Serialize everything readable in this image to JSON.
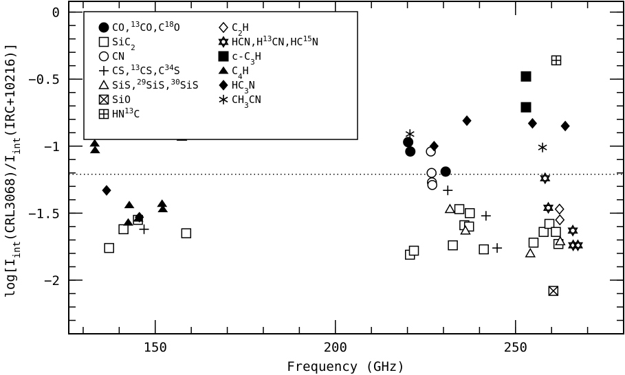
{
  "chart_data": {
    "type": "scatter",
    "xlabel": "Frequency (GHz)",
    "ylabel": "log[I_int(CRL3068)/I_int(IRC+10216)]",
    "xlim": [
      126,
      280
    ],
    "ylim": [
      -2.4,
      0.08
    ],
    "x_ticks": [
      150,
      200,
      250
    ],
    "y_ticks": [
      0,
      -0.5,
      -1,
      -1.5,
      -2
    ],
    "x_tick_labels": [
      "150",
      "200",
      "250"
    ],
    "y_tick_labels": [
      "0",
      "−0.5",
      "−1",
      "−1.5",
      "−2"
    ],
    "reference_line": {
      "y": -1.21,
      "style": "dotted"
    },
    "series": [
      {
        "name": "CO,13CO,C18O",
        "marker": "filled-circle",
        "points": [
          [
            220.2,
            -0.97
          ],
          [
            220.8,
            -1.04
          ],
          [
            230.6,
            -1.19
          ]
        ]
      },
      {
        "name": "SiC2",
        "marker": "open-square",
        "points": [
          [
            137.2,
            -1.76
          ],
          [
            141.2,
            -1.62
          ],
          [
            145.2,
            -1.55
          ],
          [
            158.6,
            -1.65
          ],
          [
            220.7,
            -1.81
          ],
          [
            221.8,
            -1.78
          ],
          [
            232.6,
            -1.74
          ],
          [
            234.4,
            -1.47
          ],
          [
            235.8,
            -1.59
          ],
          [
            237.1,
            -1.6
          ],
          [
            237.3,
            -1.5
          ],
          [
            241.2,
            -1.77
          ],
          [
            255.0,
            -1.72
          ],
          [
            257.8,
            -1.64
          ],
          [
            259.4,
            -1.58
          ],
          [
            261.2,
            -1.64
          ],
          [
            261.9,
            -1.73
          ]
        ]
      },
      {
        "name": "CN",
        "marker": "open-circle",
        "points": [
          [
            226.5,
            -1.04
          ],
          [
            226.7,
            -1.2
          ],
          [
            226.8,
            -1.27
          ],
          [
            226.9,
            -1.29
          ]
        ]
      },
      {
        "name": "CS,13CS,C34S",
        "marker": "plus",
        "points": [
          [
            146.9,
            -1.62
          ],
          [
            231.2,
            -1.33
          ],
          [
            241.8,
            -1.52
          ],
          [
            244.9,
            -1.76
          ]
        ]
      },
      {
        "name": "SiS,29SiS,30SiS",
        "marker": "open-triangle",
        "points": [
          [
            157.4,
            -0.93
          ],
          [
            231.8,
            -1.47
          ],
          [
            236.1,
            -1.63
          ],
          [
            254.1,
            -1.8
          ],
          [
            262.4,
            -1.71
          ]
        ]
      },
      {
        "name": "SiO",
        "marker": "crossed-square",
        "points": [
          [
            260.5,
            -2.08
          ]
        ]
      },
      {
        "name": "HN13C",
        "marker": "plussed-square",
        "points": [
          [
            261.3,
            -0.36
          ]
        ]
      },
      {
        "name": "C2H",
        "marker": "open-diamond",
        "points": [
          [
            262.2,
            -1.47
          ],
          [
            262.3,
            -1.55
          ]
        ]
      },
      {
        "name": "HCN,H13CN,HC15N",
        "marker": "star-of-david",
        "points": [
          [
            258.2,
            -1.24
          ],
          [
            259.1,
            -1.46
          ],
          [
            265.9,
            -1.63
          ],
          [
            266.0,
            -1.74
          ],
          [
            267.3,
            -1.74
          ]
        ]
      },
      {
        "name": "c-C3H",
        "marker": "filled-square",
        "points": [
          [
            252.9,
            -0.48
          ],
          [
            252.9,
            -0.71
          ]
        ]
      },
      {
        "name": "C4H",
        "marker": "filled-triangle",
        "points": [
          [
            133.2,
            -0.98
          ],
          [
            133.3,
            -1.03
          ],
          [
            142.5,
            -1.57
          ],
          [
            142.8,
            -1.44
          ],
          [
            145.3,
            -1.54
          ],
          [
            151.9,
            -1.43
          ],
          [
            152.1,
            -1.47
          ]
        ]
      },
      {
        "name": "HC3N",
        "marker": "filled-diamond",
        "points": [
          [
            136.5,
            -1.33
          ],
          [
            145.6,
            -1.53
          ],
          [
            227.4,
            -1.0
          ],
          [
            236.5,
            -0.81
          ],
          [
            254.7,
            -0.83
          ],
          [
            263.8,
            -0.85
          ]
        ]
      },
      {
        "name": "CH3CN",
        "marker": "asterisk",
        "points": [
          [
            220.7,
            -0.91
          ],
          [
            257.5,
            -1.01
          ]
        ]
      }
    ],
    "legend": {
      "placement": "top-left",
      "entries": [
        {
          "name": "CO,13CO,C18O",
          "marker": "filled-circle"
        },
        {
          "name": "SiC2",
          "marker": "open-square"
        },
        {
          "name": "CN",
          "marker": "open-circle"
        },
        {
          "name": "CS,13CS,C34S",
          "marker": "plus"
        },
        {
          "name": "SiS,29SiS,30SiS",
          "marker": "open-triangle"
        },
        {
          "name": "SiO",
          "marker": "crossed-square"
        },
        {
          "name": "HN13C",
          "marker": "plussed-square"
        },
        {
          "name": "C2H",
          "marker": "open-diamond"
        },
        {
          "name": "HCN,H13CN,HC15N",
          "marker": "star-of-david"
        },
        {
          "name": "c-C3H",
          "marker": "filled-square"
        },
        {
          "name": "C4H",
          "marker": "filled-triangle"
        },
        {
          "name": "HC3N",
          "marker": "filled-diamond"
        },
        {
          "name": "CH3CN",
          "marker": "asterisk"
        }
      ]
    }
  }
}
